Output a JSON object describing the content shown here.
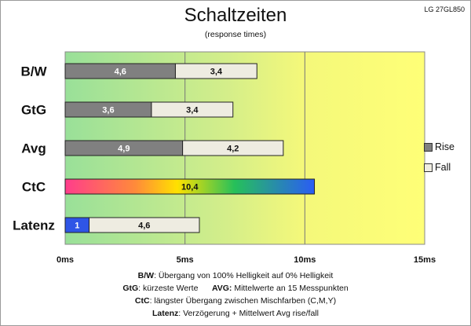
{
  "header": {
    "title": "Schaltzeiten",
    "subtitle": "(response times)",
    "model": "LG 27GL850"
  },
  "chart_data": {
    "type": "bar",
    "orientation": "horizontal",
    "stacked": true,
    "categories": [
      "B/W",
      "GtG",
      "Avg",
      "CtC",
      "Latenz"
    ],
    "series": [
      {
        "name": "Rise",
        "color": "#808080",
        "values": [
          4.6,
          3.6,
          4.9,
          null,
          1
        ]
      },
      {
        "name": "Fall",
        "color": "#eeece1",
        "values": [
          3.4,
          3.4,
          4.2,
          null,
          4.6
        ]
      },
      {
        "name": "",
        "color": "gradient",
        "values": [
          null,
          null,
          null,
          10.4,
          null
        ]
      }
    ],
    "xlim": [
      0,
      15
    ],
    "x_ticks": [
      "0ms",
      "5ms",
      "10ms",
      "15ms"
    ],
    "x_tick_values": [
      0,
      5,
      10,
      15
    ],
    "grid": "vertical",
    "legend_position": "right",
    "background_gradient": [
      "#99e099",
      "#f4f87a",
      "#ffff77"
    ],
    "ctc_gradient": [
      "#ff3d8c",
      "#ffe100",
      "#26c05a",
      "#2a5cf5"
    ],
    "latency_rise_color": "#2f55e6"
  },
  "legend": {
    "rise": "Rise",
    "fall": "Fall"
  },
  "footer": {
    "line1_key": "B/W",
    "line1_text": ":  Übergang von 100% Helligkeit auf 0% Helligkeit",
    "line2_key_a": "GtG",
    "line2_text_a": ": kürzeste  Werte",
    "line2_key_b": "AVG:",
    "line2_text_b": " Mittelwerte  an 15 Messpunkten",
    "line3_key": "CtC",
    "line3_text": ": längster Übergang  zwischen Mischfarben (C,M,Y)",
    "line4_key": "Latenz",
    "line4_text": ": Verzögerung  + Mittelwert  Avg rise/fall"
  }
}
